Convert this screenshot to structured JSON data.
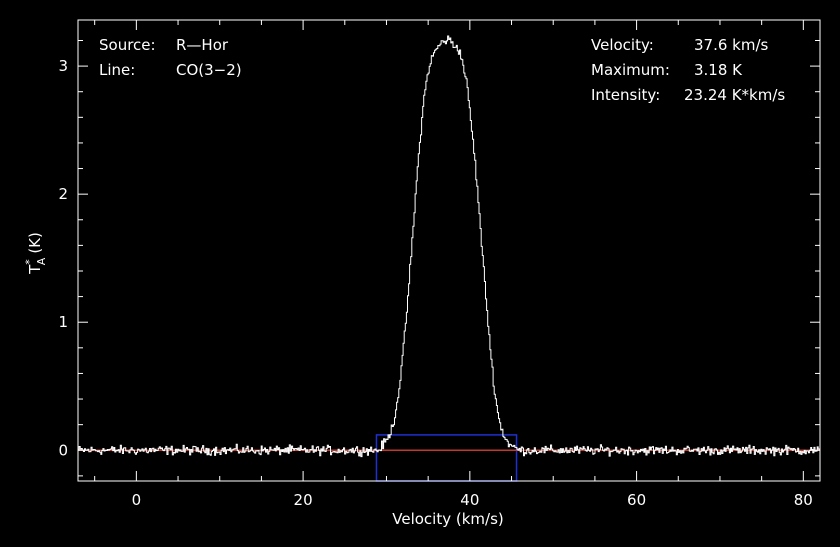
{
  "info": {
    "source_label": "Source:",
    "source_value": "R—Hor",
    "line_label": "Line:",
    "line_value": "CO(3−2)",
    "velocity_label": "Velocity:",
    "velocity_value": "37.6 km/s",
    "maximum_label": "Maximum:",
    "maximum_value": "3.18 K",
    "intensity_label": "Intensity:",
    "intensity_value": "23.24 K*km/s"
  },
  "colors": {
    "background": "#000000",
    "axes": "#ffffff",
    "spectrum": "#ffffff",
    "baseline": "#c0392b",
    "window": "#1f2fd0"
  },
  "chart_data": {
    "type": "line",
    "title": "",
    "xlabel": "Velocity (km/s)",
    "ylabel": "T_A^* (K)",
    "ylabel_main": "T",
    "ylabel_sup": "*",
    "ylabel_sub": "A",
    "ylabel_unit": "(K)",
    "xlim": [
      -7,
      82
    ],
    "ylim": [
      -0.24,
      3.36
    ],
    "xticks": [
      0,
      20,
      40,
      60,
      80
    ],
    "yticks": [
      0,
      1,
      2,
      3
    ],
    "xtick_labels": [
      "0",
      "20",
      "40",
      "60",
      "80"
    ],
    "ytick_labels": [
      "0",
      "1",
      "2",
      "3"
    ],
    "baseline_level": 0,
    "window": {
      "x_range": [
        28.8,
        45.6
      ],
      "y_range": [
        -0.24,
        0.12
      ]
    },
    "series": [
      {
        "x": [
          -7,
          29,
          30,
          30.5,
          31,
          31.5,
          32,
          32.5,
          33,
          33.5,
          34,
          34.5,
          35,
          35.5,
          36,
          36.5,
          37,
          37.5,
          38,
          38.5,
          39,
          39.5,
          40,
          40.5,
          41,
          41.5,
          42,
          42.5,
          43,
          43.5,
          44,
          44.5,
          45,
          46,
          82
        ],
        "y": [
          0,
          0,
          0.08,
          0.15,
          0.28,
          0.5,
          0.8,
          1.18,
          1.6,
          2.05,
          2.45,
          2.78,
          2.98,
          3.08,
          3.14,
          3.18,
          3.2,
          3.21,
          3.16,
          3.15,
          3.05,
          2.9,
          2.62,
          2.3,
          1.92,
          1.5,
          1.1,
          0.72,
          0.42,
          0.22,
          0.12,
          0.06,
          0.03,
          0,
          0
        ]
      }
    ]
  }
}
